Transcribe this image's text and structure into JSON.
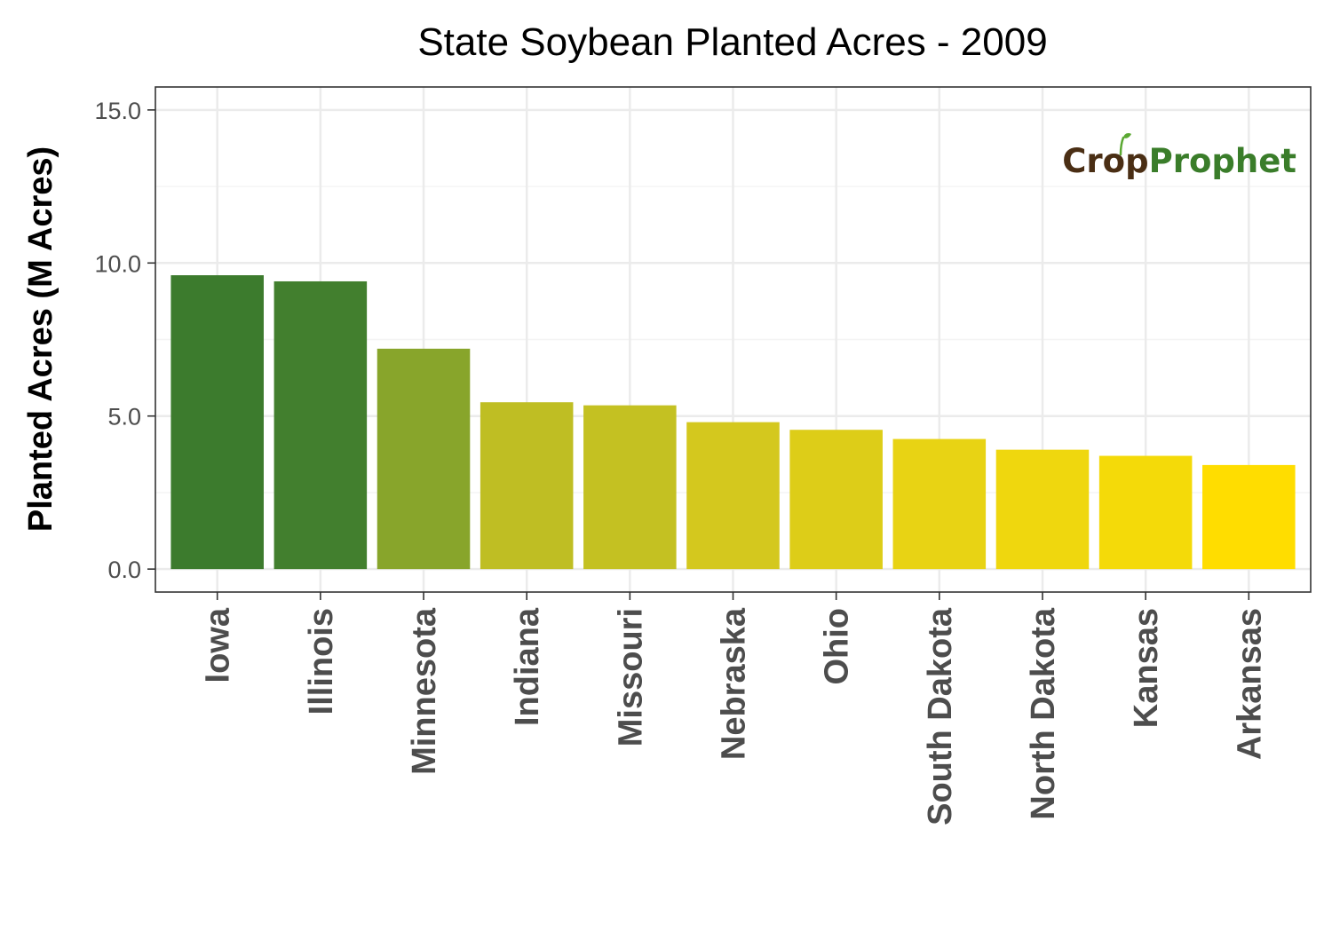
{
  "chart_data": {
    "type": "bar",
    "title": "State Soybean Planted Acres - 2009",
    "ylabel": "Planted Acres (M Acres)",
    "xlabel": "",
    "categories": [
      "Iowa",
      "Illinois",
      "Minnesota",
      "Indiana",
      "Missouri",
      "Nebraska",
      "Ohio",
      "South Dakota",
      "North Dakota",
      "Kansas",
      "Arkansas"
    ],
    "values": [
      9.6,
      9.4,
      7.2,
      5.45,
      5.35,
      4.8,
      4.55,
      4.25,
      3.9,
      3.7,
      3.4
    ],
    "bar_colors": [
      "#3c7b2d",
      "#427f2e",
      "#88a52b",
      "#bfbe23",
      "#c4c122",
      "#d4c81e",
      "#ddcd18",
      "#e8d314",
      "#efd70e",
      "#f4da09",
      "#ffdd00"
    ],
    "ylim": [
      -0.75,
      15.75
    ],
    "yticks": [
      0,
      5,
      10,
      15
    ],
    "ytick_labels": [
      "0.0",
      "5.0",
      "10.0",
      "15.0"
    ],
    "grid": true,
    "legend": "none"
  },
  "logo": {
    "part1": "Crop",
    "part2": "Prophet",
    "part1_color": "#4a2e14",
    "part2_color": "#3a7d2a",
    "sprout_color": "#5aa832"
  },
  "colors": {
    "panel_border": "#333333",
    "grid_major": "#ebebeb",
    "grid_minor": "#f4f4f4",
    "tick_text": "#4d4d4d"
  }
}
